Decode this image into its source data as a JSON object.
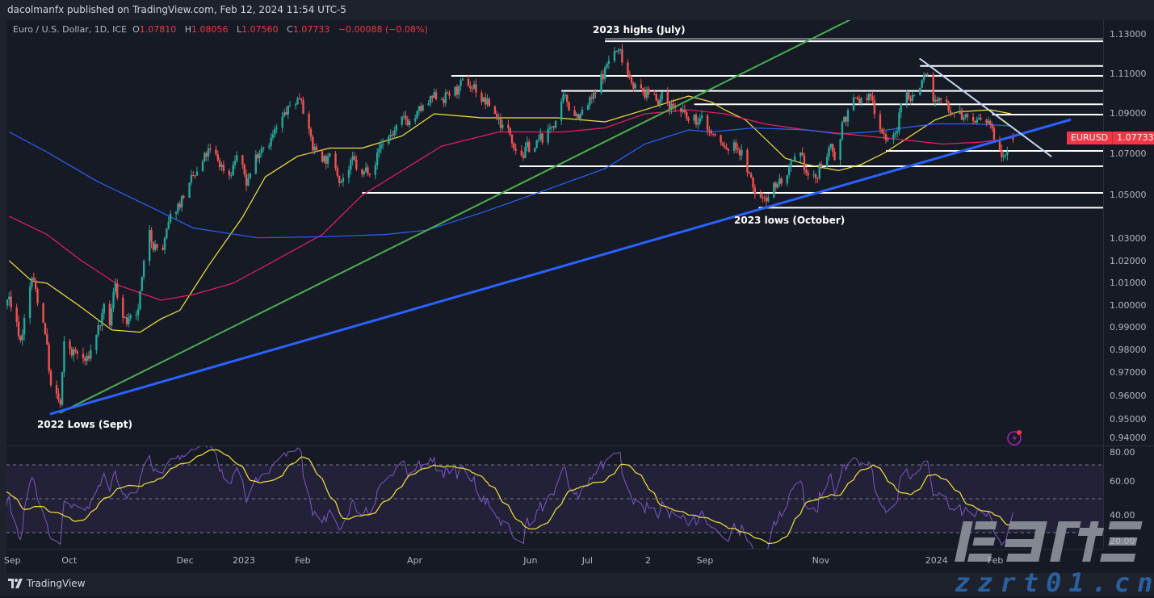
{
  "header": {
    "published": "dacolmanfx published on TradingView.com, Feb 12, 2024 11:54 UTC-5"
  },
  "legend": {
    "symbol": "Euro / U.S. Dollar, 1D, ICE",
    "o_label": "O",
    "open": "1.07810",
    "h_label": "H",
    "high": "1.08056",
    "l_label": "L",
    "low": "1.07560",
    "c_label": "C",
    "close": "1.07733",
    "change": "−0.00088 (−0.08%)"
  },
  "price_tag": {
    "symbol": "EURUSD",
    "price": "1.07733"
  },
  "annotations": {
    "highs_2023": "2023 highs (July)",
    "lows_2023": "2023 lows (October)",
    "lows_2022": "2022 Lows (Sept)"
  },
  "footer": {
    "brand": "TradingView"
  },
  "watermark": {
    "cn": "海马财经",
    "site": "zzrt01.cn"
  },
  "colors": {
    "up": "#26a69a",
    "down": "#ef5350",
    "background": "#161a25",
    "price_tag": "#f23645",
    "rsi": "#7e57c2",
    "rsi_ma": "#f5e33a"
  },
  "chart_data": {
    "type": "candlestick",
    "symbol": "EURUSD",
    "interval": "1D",
    "y_ticks": [
      "1.13000",
      "1.11000",
      "1.09000",
      "1.07000",
      "1.05000",
      "1.03000",
      "1.02000",
      "1.01000",
      "1.00000",
      "0.99000",
      "0.98000",
      "0.97000",
      "0.96000",
      "0.95000",
      "0.94000"
    ],
    "x_ticks": [
      {
        "label": "Sep",
        "date": "2022-09-01"
      },
      {
        "label": "Oct",
        "date": "2022-10-01"
      },
      {
        "label": "Dec",
        "date": "2022-12-01"
      },
      {
        "label": "2023",
        "date": "2023-01-01"
      },
      {
        "label": "Feb",
        "date": "2023-02-01"
      },
      {
        "label": "Apr",
        "date": "2023-04-01"
      },
      {
        "label": "Jun",
        "date": "2023-06-01"
      },
      {
        "label": "Jul",
        "date": "2023-07-01"
      },
      {
        "label": "2",
        "date": "2023-08-02"
      },
      {
        "label": "Sep",
        "date": "2023-09-01"
      },
      {
        "label": "Nov",
        "date": "2023-11-01"
      },
      {
        "label": "2024",
        "date": "2024-01-01"
      },
      {
        "label": "Feb",
        "date": "2024-02-01"
      }
    ],
    "close_path": [
      [
        "2022-09-01",
        1.004
      ],
      [
        "2022-09-07",
        0.985
      ],
      [
        "2022-09-13",
        1.012
      ],
      [
        "2022-09-20",
        0.99
      ],
      [
        "2022-09-23",
        0.964
      ],
      [
        "2022-09-28",
        0.955
      ],
      [
        "2022-09-30",
        0.98
      ],
      [
        "2022-10-06",
        0.978
      ],
      [
        "2022-10-12",
        0.974
      ],
      [
        "2022-10-17",
        0.988
      ],
      [
        "2022-10-21",
        0.996
      ],
      [
        "2022-10-24",
        0.99
      ],
      [
        "2022-10-27",
        1.01
      ],
      [
        "2022-11-01",
        0.992
      ],
      [
        "2022-11-07",
        0.99
      ],
      [
        "2022-11-09",
        1.003
      ],
      [
        "2022-11-14",
        1.033
      ],
      [
        "2022-11-20",
        1.023
      ],
      [
        "2022-11-25",
        1.037
      ],
      [
        "2022-12-02",
        1.051
      ],
      [
        "2022-12-09",
        1.059
      ],
      [
        "2022-12-15",
        1.07
      ],
      [
        "2022-12-26",
        1.061
      ],
      [
        "2022-12-30",
        1.07
      ],
      [
        "2023-01-04",
        1.056
      ],
      [
        "2023-01-12",
        1.076
      ],
      [
        "2023-01-21",
        1.082
      ],
      [
        "2023-01-25",
        1.09
      ],
      [
        "2023-02-02",
        1.1
      ],
      [
        "2023-02-08",
        1.073
      ],
      [
        "2023-02-17",
        1.067
      ],
      [
        "2023-02-23",
        1.06
      ],
      [
        "2023-03-01",
        1.065
      ],
      [
        "2023-03-06",
        1.058
      ],
      [
        "2023-03-18",
        1.078
      ],
      [
        "2023-04-05",
        1.09
      ],
      [
        "2023-04-15",
        1.098
      ],
      [
        "2023-04-26",
        1.102
      ],
      [
        "2023-05-04",
        1.104
      ],
      [
        "2023-05-08",
        1.098
      ],
      [
        "2023-05-15",
        1.09
      ],
      [
        "2023-05-21",
        1.082
      ],
      [
        "2023-05-30",
        1.072
      ],
      [
        "2023-06-05",
        1.074
      ],
      [
        "2023-06-12",
        1.08
      ],
      [
        "2023-06-20",
        1.095
      ],
      [
        "2023-06-29",
        1.09
      ],
      [
        "2023-07-07",
        1.098
      ],
      [
        "2023-07-12",
        1.112
      ],
      [
        "2023-07-16",
        1.122
      ],
      [
        "2023-07-20",
        1.12
      ],
      [
        "2023-07-24",
        1.112
      ],
      [
        "2023-08-01",
        1.1
      ],
      [
        "2023-08-10",
        1.099
      ],
      [
        "2023-08-19",
        1.093
      ],
      [
        "2023-08-25",
        1.085
      ],
      [
        "2023-09-01",
        1.086
      ],
      [
        "2023-09-09",
        1.077
      ],
      [
        "2023-09-13",
        1.072
      ],
      [
        "2023-09-20",
        1.074
      ],
      [
        "2023-09-24",
        1.067
      ],
      [
        "2023-09-28",
        1.052
      ],
      [
        "2023-10-02",
        1.048
      ],
      [
        "2023-10-09",
        1.056
      ],
      [
        "2023-10-15",
        1.058
      ],
      [
        "2023-10-22",
        1.065
      ],
      [
        "2023-10-28",
        1.058
      ],
      [
        "2023-11-01",
        1.058
      ],
      [
        "2023-11-05",
        1.072
      ],
      [
        "2023-11-12",
        1.069
      ],
      [
        "2023-11-14",
        1.087
      ],
      [
        "2023-11-20",
        1.095
      ],
      [
        "2023-11-29",
        1.098
      ],
      [
        "2023-12-03",
        1.087
      ],
      [
        "2023-12-07",
        1.08
      ],
      [
        "2023-12-12",
        1.078
      ],
      [
        "2023-12-16",
        1.098
      ],
      [
        "2023-12-22",
        1.1
      ],
      [
        "2023-12-28",
        1.112
      ],
      [
        "2024-01-02",
        1.096
      ],
      [
        "2024-01-08",
        1.094
      ],
      [
        "2024-01-14",
        1.095
      ],
      [
        "2024-01-17",
        1.088
      ],
      [
        "2024-01-27",
        1.085
      ],
      [
        "2024-02-03",
        1.078
      ],
      [
        "2024-02-06",
        1.074
      ],
      [
        "2024-02-12",
        1.07733
      ]
    ],
    "moving_averages": [
      {
        "color": "#f5e33a",
        "points": [
          [
            "2022-09-01",
            1.0204
          ],
          [
            "2022-09-13",
            1.011
          ],
          [
            "2022-09-21",
            1.01
          ],
          [
            "2022-10-08",
            1.0
          ],
          [
            "2022-10-25",
            0.989
          ],
          [
            "2022-11-09",
            0.988
          ],
          [
            "2022-11-20",
            0.994
          ],
          [
            "2022-11-30",
            0.998
          ],
          [
            "2022-12-15",
            1.018
          ],
          [
            "2023-01-02",
            1.04
          ],
          [
            "2023-01-14",
            1.059
          ],
          [
            "2023-01-31",
            1.069
          ],
          [
            "2023-02-17",
            1.073
          ],
          [
            "2023-03-06",
            1.073
          ],
          [
            "2023-03-27",
            1.079
          ],
          [
            "2023-04-13",
            1.09
          ],
          [
            "2023-05-08",
            1.088
          ],
          [
            "2023-06-17",
            1.088
          ],
          [
            "2023-07-12",
            1.086
          ],
          [
            "2023-08-02",
            1.092
          ],
          [
            "2023-08-25",
            1.099
          ],
          [
            "2023-09-06",
            1.096
          ],
          [
            "2023-09-13",
            1.092
          ],
          [
            "2023-09-24",
            1.087
          ],
          [
            "2023-10-04",
            1.078
          ],
          [
            "2023-10-15",
            1.068
          ],
          [
            "2023-10-26",
            1.065
          ],
          [
            "2023-11-12",
            1.062
          ],
          [
            "2023-11-24",
            1.065
          ],
          [
            "2023-12-07",
            1.071
          ],
          [
            "2023-12-20",
            1.079
          ],
          [
            "2024-01-02",
            1.087
          ],
          [
            "2024-01-14",
            1.091
          ],
          [
            "2024-01-31",
            1.092
          ],
          [
            "2024-02-11",
            1.09
          ]
        ]
      },
      {
        "color": "#e91e63",
        "points": [
          [
            "2022-09-01",
            1.0404
          ],
          [
            "2022-09-21",
            1.032
          ],
          [
            "2022-10-08",
            1.021
          ],
          [
            "2022-10-29",
            1.009
          ],
          [
            "2022-11-20",
            1.0025
          ],
          [
            "2022-12-07",
            1.005
          ],
          [
            "2022-12-28",
            1.01
          ],
          [
            "2023-01-14",
            1.018
          ],
          [
            "2023-02-13",
            1.032
          ],
          [
            "2023-03-06",
            1.05
          ],
          [
            "2023-03-27",
            1.062
          ],
          [
            "2023-04-17",
            1.074
          ],
          [
            "2023-05-17",
            1.081
          ],
          [
            "2023-06-20",
            1.081
          ],
          [
            "2023-07-12",
            1.083
          ],
          [
            "2023-08-02",
            1.09
          ],
          [
            "2023-08-25",
            1.092
          ],
          [
            "2023-09-13",
            1.09
          ],
          [
            "2023-10-04",
            1.085
          ],
          [
            "2023-10-26",
            1.082
          ],
          [
            "2023-11-16",
            1.08
          ],
          [
            "2023-12-07",
            1.078
          ],
          [
            "2024-01-06",
            1.075
          ],
          [
            "2024-01-27",
            1.076
          ],
          [
            "2024-02-11",
            1.078
          ]
        ]
      },
      {
        "color": "#2962ff",
        "points": [
          [
            "2022-09-01",
            1.081
          ],
          [
            "2022-09-21",
            1.071
          ],
          [
            "2022-10-17",
            1.057
          ],
          [
            "2022-11-16",
            1.044
          ],
          [
            "2022-12-07",
            1.035
          ],
          [
            "2023-01-10",
            1.0305
          ],
          [
            "2023-02-13",
            1.031
          ],
          [
            "2023-03-18",
            1.032
          ],
          [
            "2023-04-09",
            1.034
          ],
          [
            "2023-05-08",
            1.042
          ],
          [
            "2023-06-12",
            1.053
          ],
          [
            "2023-07-12",
            1.063
          ],
          [
            "2023-08-02",
            1.075
          ],
          [
            "2023-08-25",
            1.082
          ],
          [
            "2023-09-06",
            1.081
          ],
          [
            "2023-09-28",
            1.083
          ],
          [
            "2023-10-26",
            1.082
          ],
          [
            "2023-11-12",
            1.08
          ],
          [
            "2023-11-29",
            1.081
          ],
          [
            "2023-12-16",
            1.083
          ],
          [
            "2024-01-02",
            1.085
          ],
          [
            "2024-01-23",
            1.085
          ],
          [
            "2024-02-11",
            1.084
          ]
        ]
      }
    ],
    "levels": [
      {
        "price": 1.1267,
        "from": "2023-07-12"
      },
      {
        "price": 1.1142,
        "from": "2023-12-25"
      },
      {
        "price": 1.1092,
        "from": "2023-04-22"
      },
      {
        "price": 1.1016,
        "from": "2023-06-19"
      },
      {
        "price": 1.0948,
        "from": "2023-08-28"
      },
      {
        "price": 1.0896,
        "from": "2024-02-01"
      },
      {
        "price": 1.0716,
        "from": "2023-12-07"
      },
      {
        "price": 1.0641,
        "from": "2023-05-28"
      },
      {
        "price": 1.0512,
        "from": "2023-03-06"
      },
      {
        "price": 1.0443,
        "from": "2023-10-01"
      }
    ],
    "trendlines": [
      {
        "color": "#4caf50",
        "from": [
          "2022-09-28",
          0.953
        ],
        "to": [
          "2023-11-18",
          1.1375
        ]
      },
      {
        "color": "#2962ff",
        "from": [
          "2022-09-23",
          0.9525
        ],
        "to": [
          "2024-03-13",
          1.087
        ]
      },
      {
        "color": "#c5d6ee",
        "from": [
          "2023-12-25",
          1.1178
        ],
        "to": [
          "2024-03-03",
          1.069
        ]
      }
    ],
    "rsi": {
      "y_ticks": [
        "80.00",
        "60.00",
        "40.00",
        "20.00"
      ],
      "band": [
        30,
        70
      ],
      "mid": 50,
      "period": 14
    }
  }
}
